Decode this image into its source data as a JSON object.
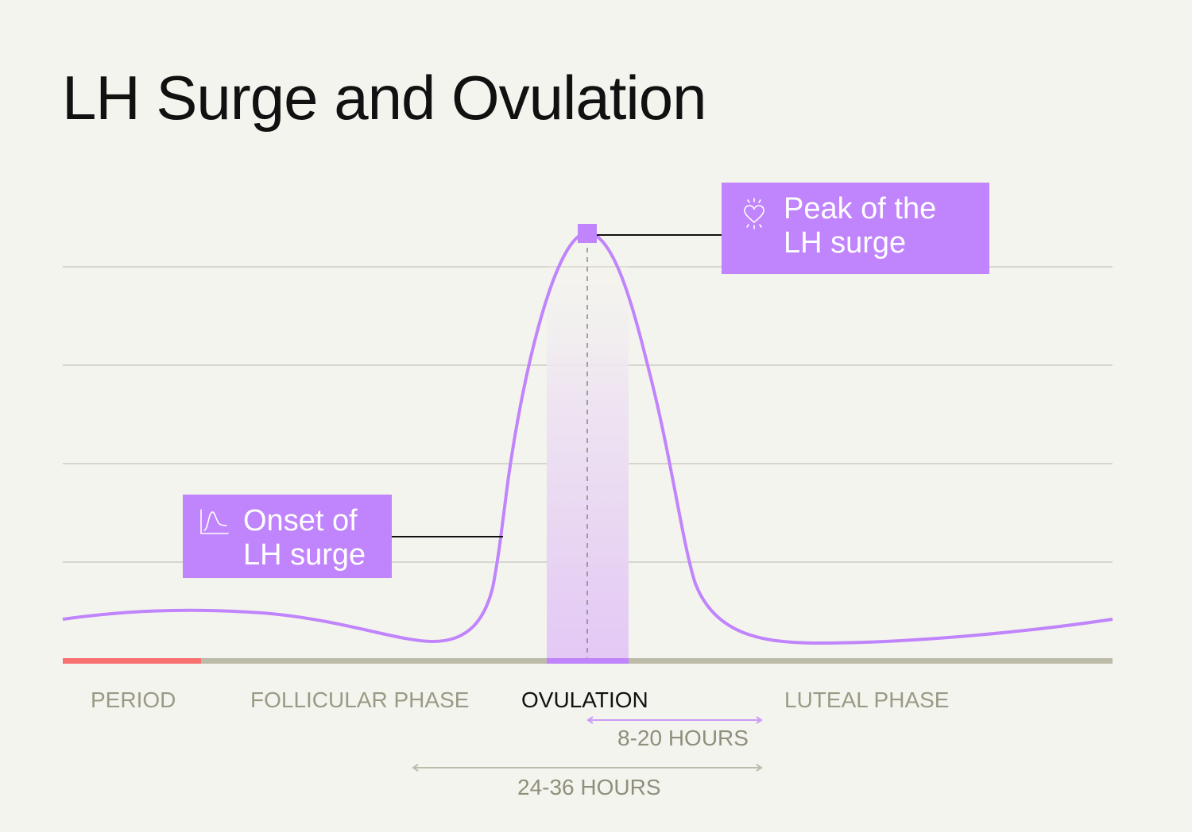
{
  "title": "LH Surge and Ovulation",
  "callouts": {
    "peak": {
      "line1": "Peak of the",
      "line2": "LH surge",
      "icon": "heart-icon"
    },
    "onset": {
      "line1": "Onset of",
      "line2": "LH surge",
      "icon": "curve-graph-icon"
    }
  },
  "phases": [
    {
      "label": "PERIOD",
      "color": "#f87171"
    },
    {
      "label": "FOLLICULAR PHASE"
    },
    {
      "label": "OVULATION",
      "active": true,
      "color": "#c084fc"
    },
    {
      "label": "LUTEAL PHASE"
    }
  ],
  "durations": {
    "short": "8-20 HOURS",
    "long": "24-36 HOURS"
  },
  "colors": {
    "accent": "#c084fc",
    "period": "#f87171",
    "baseline": "#bdbcaa",
    "background": "#f4f4ee"
  }
}
